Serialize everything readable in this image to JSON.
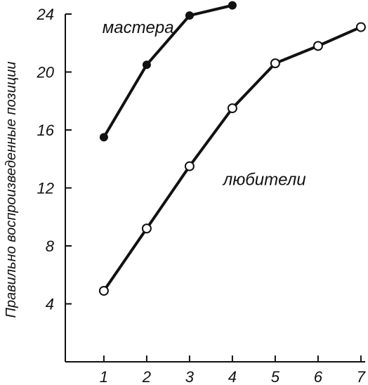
{
  "chart_data": {
    "type": "line",
    "title": "",
    "xlabel": "",
    "ylabel": "Правильно воспроизведенные позиции",
    "x": [
      1,
      2,
      3,
      4,
      5,
      6,
      7
    ],
    "xlim": [
      0.1,
      7.1
    ],
    "ylim": [
      0,
      24
    ],
    "yticks": [
      4,
      8,
      12,
      16,
      20,
      24
    ],
    "xticks": [
      1,
      2,
      3,
      4,
      5,
      6,
      7
    ],
    "grid": false,
    "series": [
      {
        "name": "мастера",
        "marker": "filled-circle",
        "x": [
          1,
          2,
          3,
          4
        ],
        "values": [
          15.5,
          20.5,
          23.9,
          24.6
        ]
      },
      {
        "name": "любители",
        "marker": "open-circle",
        "x": [
          1,
          2,
          3,
          4,
          5,
          6,
          7
        ],
        "values": [
          4.9,
          9.2,
          13.5,
          17.5,
          20.6,
          21.8,
          23.1
        ]
      }
    ],
    "colors": {
      "line": "#111111",
      "open_marker_fill": "#ffffff"
    }
  }
}
